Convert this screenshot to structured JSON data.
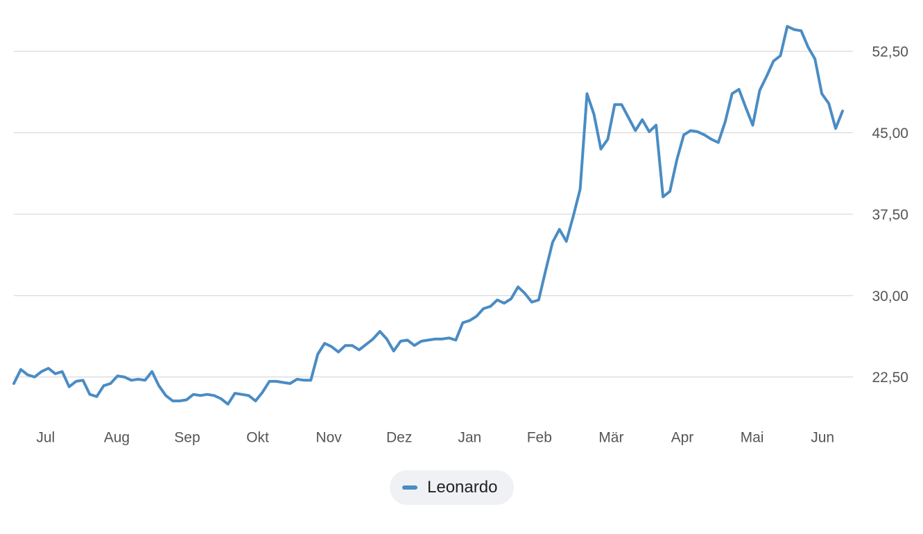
{
  "chart_data": {
    "type": "line",
    "series": [
      {
        "name": "Leonardo",
        "color": "#4a8cc4",
        "values": [
          21.9,
          23.2,
          22.7,
          22.5,
          23.0,
          23.3,
          22.8,
          23.0,
          21.6,
          22.1,
          22.2,
          20.9,
          20.7,
          21.7,
          21.9,
          22.6,
          22.5,
          22.2,
          22.3,
          22.2,
          23.0,
          21.7,
          20.8,
          20.3,
          20.3,
          20.4,
          20.9,
          20.8,
          20.9,
          20.8,
          20.5,
          20.0,
          21.0,
          20.9,
          20.8,
          20.3,
          21.1,
          22.1,
          22.1,
          22.0,
          21.9,
          22.3,
          22.2,
          22.2,
          24.6,
          25.6,
          25.3,
          24.8,
          25.4,
          25.4,
          25.0,
          25.5,
          26.0,
          26.7,
          26.0,
          24.9,
          25.8,
          25.9,
          25.4,
          25.8,
          25.9,
          26.0,
          26.0,
          26.1,
          25.9,
          27.5,
          27.7,
          28.1,
          28.8,
          29.0,
          29.6,
          29.3,
          29.7,
          30.8,
          30.2,
          29.4,
          29.6,
          32.3,
          34.9,
          36.1,
          35.0,
          37.3,
          39.8,
          48.6,
          46.7,
          43.5,
          44.4,
          47.6,
          47.6,
          46.4,
          45.2,
          46.2,
          45.1,
          45.7,
          39.1,
          39.6,
          42.5,
          44.8,
          45.2,
          45.1,
          44.8,
          44.4,
          44.1,
          46.0,
          48.6,
          49.0,
          47.3,
          45.7,
          48.9,
          50.2,
          51.6,
          52.1,
          54.8,
          54.5,
          54.4,
          52.9,
          51.8,
          48.6,
          47.7,
          45.4,
          47.0
        ]
      }
    ],
    "xlim": [
      0,
      120
    ],
    "xticks": [
      {
        "value": 4.6,
        "label": "Jul"
      },
      {
        "value": 14.9,
        "label": "Aug"
      },
      {
        "value": 25.1,
        "label": "Sep"
      },
      {
        "value": 35.3,
        "label": "Okt"
      },
      {
        "value": 45.6,
        "label": "Nov"
      },
      {
        "value": 55.8,
        "label": "Dez"
      },
      {
        "value": 66.0,
        "label": "Jan"
      },
      {
        "value": 76.1,
        "label": "Feb"
      },
      {
        "value": 86.5,
        "label": "Mär"
      },
      {
        "value": 96.8,
        "label": "Apr"
      },
      {
        "value": 106.9,
        "label": "Mai"
      },
      {
        "value": 117.1,
        "label": "Jun"
      }
    ],
    "ylim": [
      18.9,
      55.95
    ],
    "yticks": [
      {
        "value": 22.5,
        "label": "22,50"
      },
      {
        "value": 30,
        "label": "30,00"
      },
      {
        "value": 37.5,
        "label": "37,50"
      },
      {
        "value": 45,
        "label": "45,00"
      },
      {
        "value": 52.5,
        "label": "52,50"
      }
    ],
    "grid": true,
    "legend": "bottom"
  }
}
